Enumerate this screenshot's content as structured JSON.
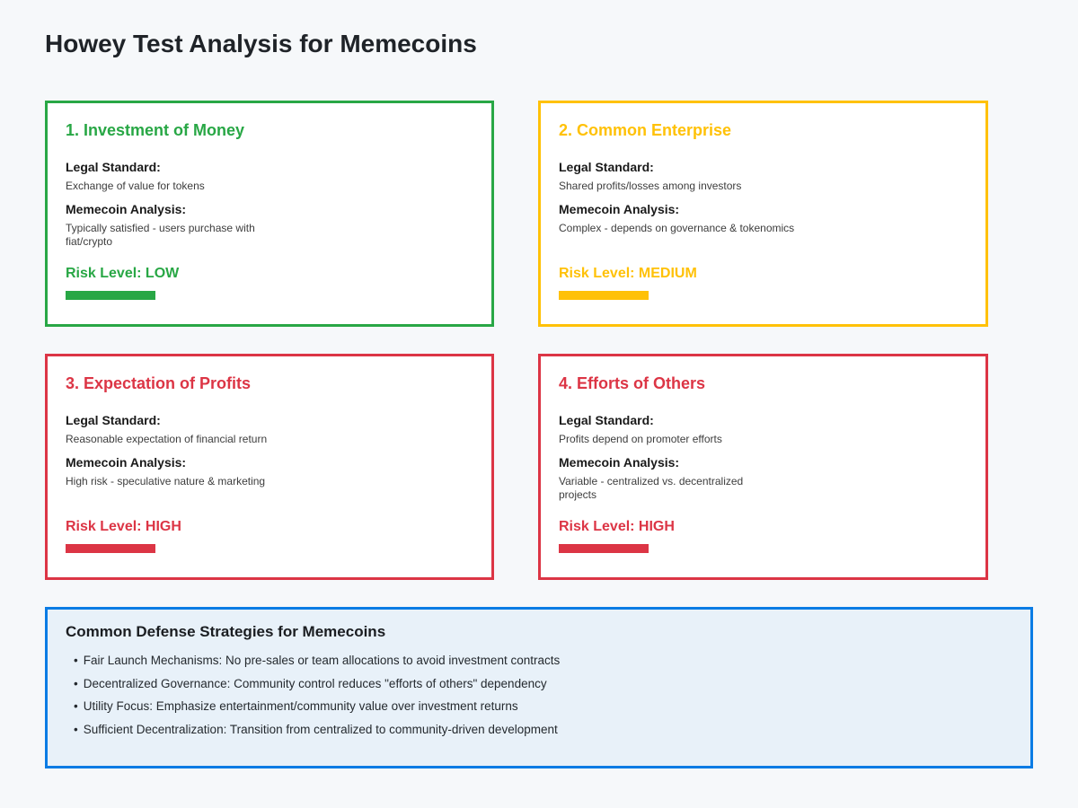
{
  "page": {
    "title": "Howey Test Analysis for Memecoins",
    "background_color": "#f6f8fa"
  },
  "field_labels": {
    "legal_standard": "Legal Standard:",
    "memecoin_analysis": "Memecoin Analysis:"
  },
  "cards": [
    {
      "title": "1. Investment of Money",
      "legal_standard": "Exchange of value for tokens",
      "memecoin_analysis": "Typically satisfied - users purchase with\nfiat/crypto",
      "risk_label": "Risk Level: LOW",
      "risk_level": "LOW",
      "accent_color": "#28a745"
    },
    {
      "title": "2. Common Enterprise",
      "legal_standard": "Shared profits/losses among investors",
      "memecoin_analysis": "Complex - depends on governance & tokenomics",
      "risk_label": "Risk Level: MEDIUM",
      "risk_level": "MEDIUM",
      "accent_color": "#ffc107"
    },
    {
      "title": "3. Expectation of Profits",
      "legal_standard": "Reasonable expectation of financial return",
      "memecoin_analysis": "High risk - speculative nature & marketing",
      "risk_label": "Risk Level: HIGH",
      "risk_level": "HIGH",
      "accent_color": "#dc3545"
    },
    {
      "title": "4. Efforts of Others",
      "legal_standard": "Profits depend on promoter efforts",
      "memecoin_analysis": "Variable - centralized vs. decentralized\nprojects",
      "risk_label": "Risk Level: HIGH",
      "risk_level": "HIGH",
      "accent_color": "#dc3545"
    }
  ],
  "defense": {
    "title": "Common Defense Strategies for Memecoins",
    "accent_color": "#0b7ce4",
    "background_color": "#e8f1f9",
    "items": [
      "Fair Launch Mechanisms: No pre-sales or team allocations to avoid investment contracts",
      "Decentralized Governance: Community control reduces \"efforts of others\" dependency",
      "Utility Focus: Emphasize entertainment/community value over investment returns",
      "Sufficient Decentralization: Transition from centralized to community-driven development"
    ]
  }
}
